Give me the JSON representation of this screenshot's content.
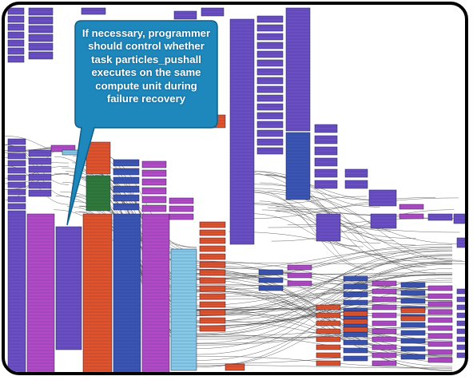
{
  "callout": {
    "lines": [
      "If necessary, programmer",
      "should control whether",
      "task particles_pushall",
      "executes on the same",
      "compute unit during",
      "failure recovery"
    ]
  },
  "colors": {
    "purple": "#6a4fc4",
    "blue": "#3a55b4",
    "magenta": "#b24ac8",
    "orange": "#e0532d",
    "green": "#2f7a3a",
    "cyan": "#86c9e8",
    "callout": "#1e87bb",
    "edge": "#444444"
  }
}
